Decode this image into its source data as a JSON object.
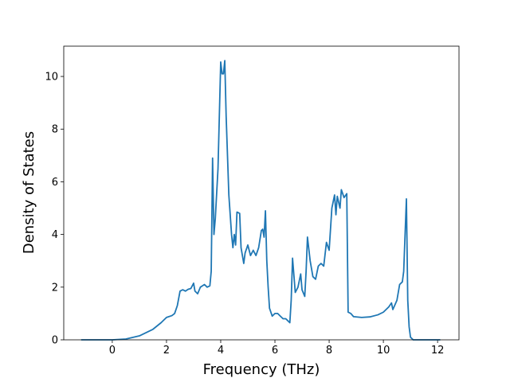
{
  "chart_data": {
    "type": "line",
    "xlabel": "Frequency (THz)",
    "ylabel": "Density of States",
    "x": [
      -1.15,
      0,
      0.5,
      1,
      1.5,
      1.8,
      2,
      2.2,
      2.3,
      2.4,
      2.5,
      2.6,
      2.7,
      2.8,
      2.9,
      3.0,
      3.05,
      3.15,
      3.25,
      3.4,
      3.5,
      3.6,
      3.65,
      3.7,
      3.75,
      3.8,
      3.9,
      4.0,
      4.05,
      4.1,
      4.15,
      4.2,
      4.3,
      4.4,
      4.45,
      4.5,
      4.55,
      4.6,
      4.7,
      4.75,
      4.85,
      4.9,
      5.0,
      5.1,
      5.2,
      5.3,
      5.4,
      5.5,
      5.55,
      5.6,
      5.65,
      5.7,
      5.75,
      5.8,
      5.9,
      6.0,
      6.1,
      6.2,
      6.3,
      6.4,
      6.5,
      6.55,
      6.6,
      6.65,
      6.75,
      6.85,
      6.95,
      7.0,
      7.1,
      7.15,
      7.2,
      7.3,
      7.4,
      7.5,
      7.6,
      7.7,
      7.8,
      7.9,
      8.0,
      8.1,
      8.2,
      8.25,
      8.3,
      8.4,
      8.45,
      8.55,
      8.65,
      8.7,
      8.8,
      8.9,
      9.2,
      9.5,
      9.8,
      10.0,
      10.2,
      10.3,
      10.35,
      10.5,
      10.6,
      10.7,
      10.75,
      10.85,
      10.9,
      10.95,
      11.0,
      11.1,
      12.1
    ],
    "y": [
      0,
      0,
      0.03,
      0.15,
      0.4,
      0.65,
      0.85,
      0.92,
      1.0,
      1.3,
      1.85,
      1.9,
      1.85,
      1.92,
      1.95,
      2.15,
      1.85,
      1.75,
      2.0,
      2.1,
      2.0,
      2.05,
      2.6,
      6.9,
      4.0,
      4.6,
      6.5,
      10.55,
      10.1,
      10.1,
      10.6,
      8.5,
      5.5,
      4.0,
      3.5,
      4.0,
      3.6,
      4.85,
      4.8,
      3.5,
      2.9,
      3.3,
      3.6,
      3.2,
      3.4,
      3.2,
      3.5,
      4.15,
      4.2,
      3.9,
      4.9,
      3.0,
      2.0,
      1.2,
      0.9,
      1.0,
      1.0,
      0.9,
      0.8,
      0.8,
      0.7,
      0.65,
      1.5,
      3.1,
      1.8,
      2.0,
      2.5,
      1.9,
      1.65,
      2.6,
      3.9,
      3.0,
      2.4,
      2.3,
      2.8,
      2.9,
      2.8,
      3.7,
      3.4,
      5.0,
      5.5,
      4.75,
      5.45,
      5.0,
      5.7,
      5.4,
      5.55,
      1.05,
      1.0,
      0.88,
      0.85,
      0.87,
      0.95,
      1.05,
      1.25,
      1.4,
      1.15,
      1.5,
      2.1,
      2.2,
      2.6,
      5.35,
      1.5,
      0.5,
      0.1,
      0,
      0
    ],
    "color": "#1f77b4",
    "xlim": [
      -1.79,
      12.79
    ],
    "ylim": [
      0,
      11.15
    ],
    "xticks": [
      0,
      2,
      4,
      6,
      8,
      10,
      12
    ],
    "yticks": [
      0,
      2,
      4,
      6,
      8,
      10
    ]
  }
}
